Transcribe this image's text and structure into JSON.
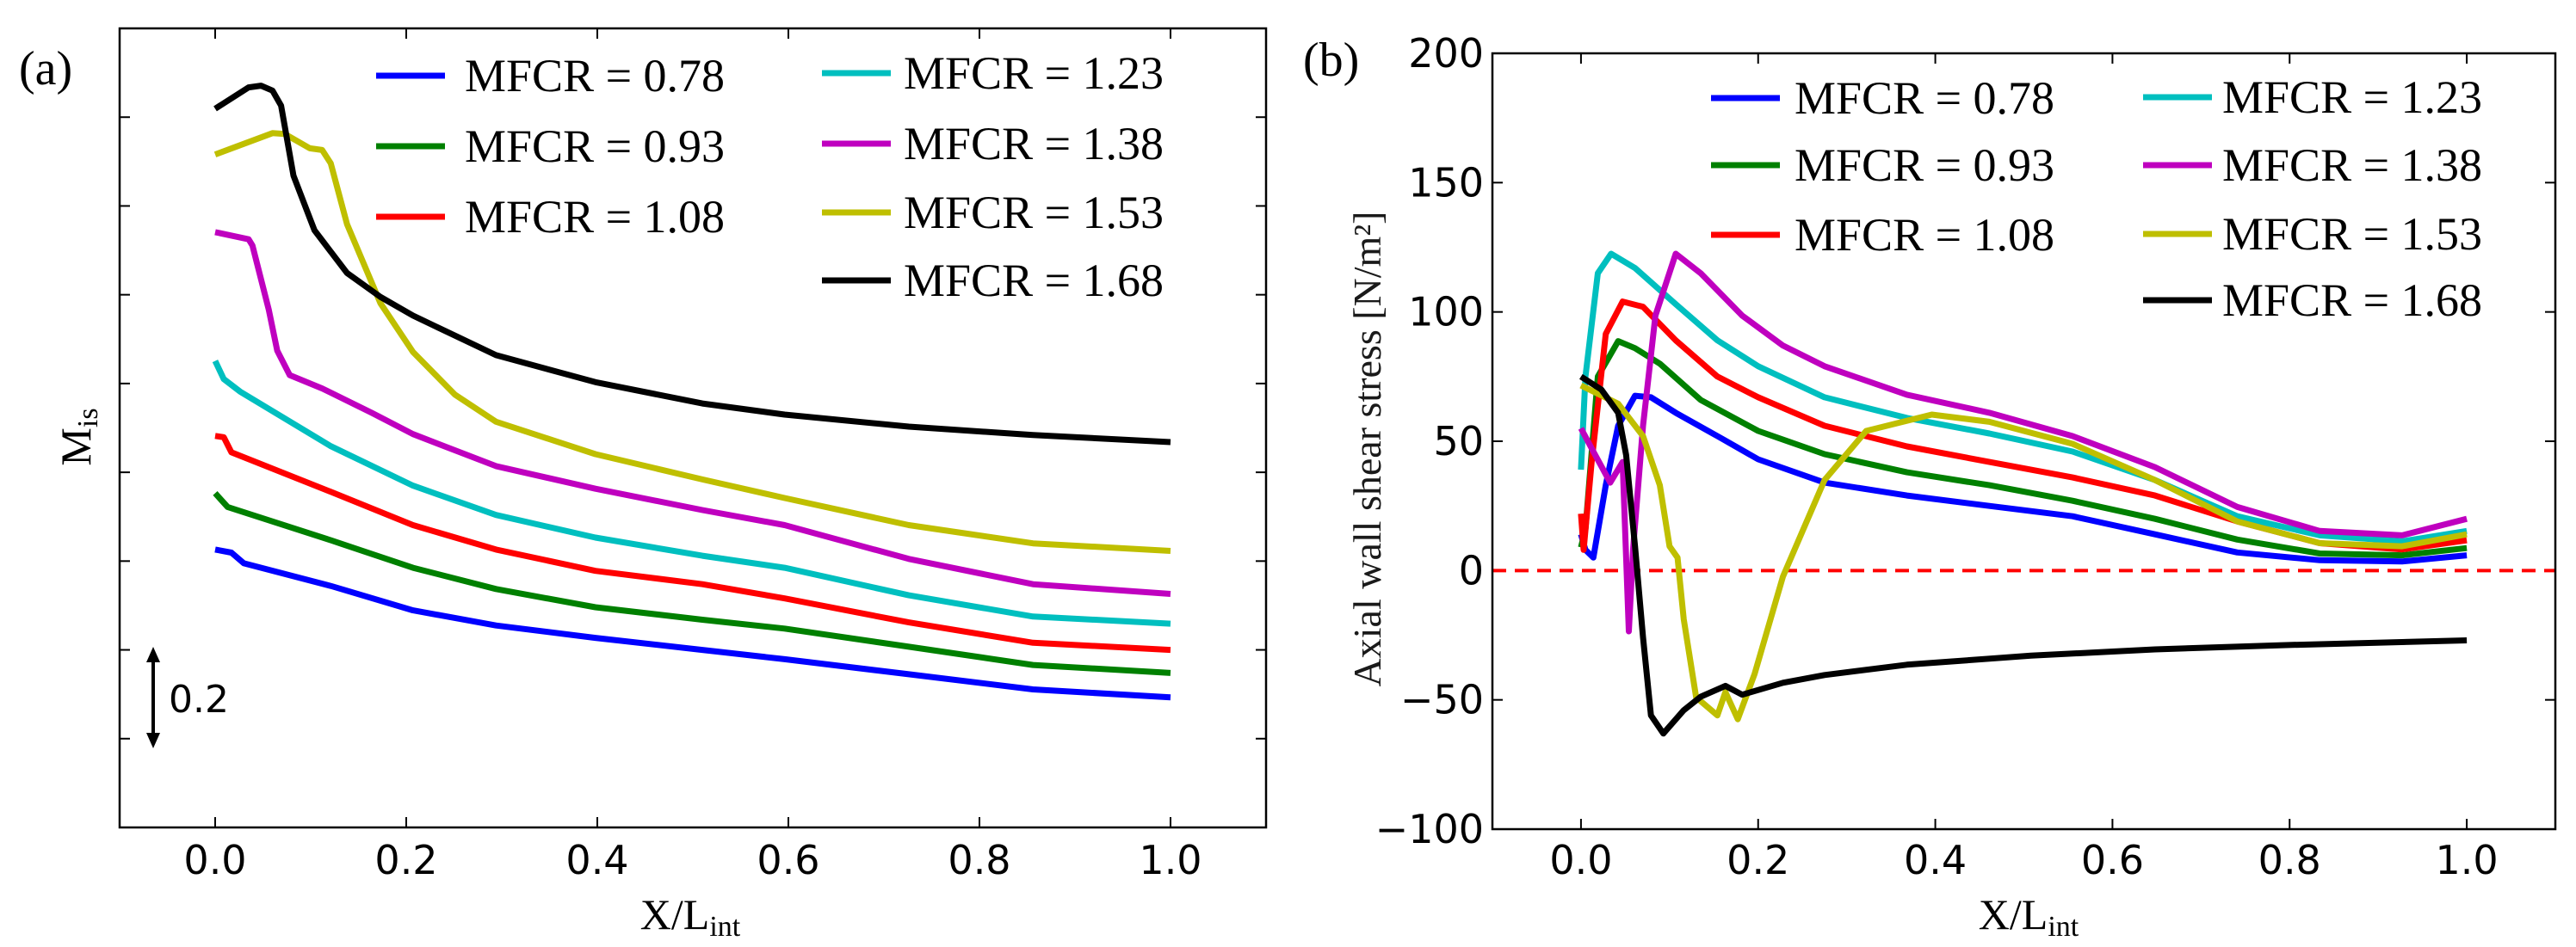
{
  "chart_data": [
    {
      "type": "line",
      "panel_label": "(a)",
      "title": "",
      "xlabel": "X/L",
      "xlabel_sub": "int",
      "ylabel": "M",
      "ylabel_sub": "is",
      "xlim": [
        -0.1,
        1.1
      ],
      "ylim": [
        0,
        1.8
      ],
      "y_units_note": "relative (no absolute y tick labels; scale bar = 0.2)",
      "xticks": [
        "0.0",
        "0.2",
        "0.4",
        "0.6",
        "0.8",
        "1.0"
      ],
      "ytick_values": [
        0.2,
        0.4,
        0.6,
        0.8,
        1.0,
        1.2,
        1.4,
        1.6
      ],
      "scale_bar_label": "0.2",
      "scale_bar_value": 0.2,
      "grid": false,
      "legend_placement": "top-right",
      "series": [
        {
          "name": "MFCR = 0.78",
          "color": "#0000ff",
          "x": [
            0,
            0.017,
            0.03,
            0.121,
            0.207,
            0.294,
            0.398,
            0.51,
            0.596,
            0.726,
            0.856,
            1
          ],
          "y": [
            0.626,
            0.619,
            0.595,
            0.544,
            0.489,
            0.455,
            0.427,
            0.4,
            0.379,
            0.345,
            0.311,
            0.293
          ]
        },
        {
          "name": "MFCR = 0.93",
          "color": "#008000",
          "x": [
            0,
            0.013,
            0.121,
            0.207,
            0.294,
            0.398,
            0.51,
            0.596,
            0.726,
            0.856,
            1
          ],
          "y": [
            0.753,
            0.722,
            0.647,
            0.585,
            0.537,
            0.496,
            0.468,
            0.448,
            0.407,
            0.366,
            0.348
          ]
        },
        {
          "name": "MFCR = 1.08",
          "color": "#ff0000",
          "x": [
            0,
            0.009,
            0.017,
            0.121,
            0.207,
            0.294,
            0.398,
            0.51,
            0.596,
            0.726,
            0.856,
            1
          ],
          "y": [
            0.882,
            0.879,
            0.845,
            0.756,
            0.681,
            0.626,
            0.578,
            0.548,
            0.516,
            0.462,
            0.416,
            0.4
          ]
        },
        {
          "name": "MFCR = 1.23",
          "color": "#00bfbf",
          "x": [
            0,
            0.009,
            0.026,
            0.121,
            0.207,
            0.294,
            0.398,
            0.51,
            0.596,
            0.726,
            0.856,
            1
          ],
          "y": [
            1.051,
            1.01,
            0.982,
            0.859,
            0.77,
            0.704,
            0.653,
            0.612,
            0.585,
            0.523,
            0.475,
            0.459
          ]
        },
        {
          "name": "MFCR = 1.38",
          "color": "#bf00bf",
          "x": [
            0,
            0.035,
            0.039,
            0.056,
            0.065,
            0.078,
            0.112,
            0.164,
            0.207,
            0.294,
            0.398,
            0.51,
            0.596,
            0.726,
            0.856,
            1
          ],
          "y": [
            1.341,
            1.325,
            1.311,
            1.167,
            1.074,
            1.019,
            0.989,
            0.934,
            0.886,
            0.814,
            0.763,
            0.715,
            0.681,
            0.605,
            0.548,
            0.526
          ]
        },
        {
          "name": "MFCR = 1.53",
          "color": "#bfbf00",
          "x": [
            0,
            0.06,
            0.073,
            0.099,
            0.112,
            0.121,
            0.138,
            0.173,
            0.207,
            0.251,
            0.294,
            0.398,
            0.51,
            0.596,
            0.726,
            0.856,
            1
          ],
          "y": [
            1.516,
            1.564,
            1.562,
            1.53,
            1.526,
            1.496,
            1.359,
            1.181,
            1.071,
            0.975,
            0.914,
            0.841,
            0.784,
            0.742,
            0.681,
            0.64,
            0.623
          ]
        },
        {
          "name": "MFCR = 1.68",
          "color": "#000000",
          "x": [
            0,
            0.035,
            0.048,
            0.06,
            0.069,
            0.082,
            0.104,
            0.138,
            0.173,
            0.207,
            0.294,
            0.398,
            0.51,
            0.596,
            0.726,
            0.856,
            1
          ],
          "y": [
            1.619,
            1.667,
            1.671,
            1.66,
            1.626,
            1.468,
            1.345,
            1.249,
            1.195,
            1.153,
            1.064,
            1.003,
            0.955,
            0.93,
            0.903,
            0.884,
            0.868
          ]
        }
      ]
    },
    {
      "type": "line",
      "panel_label": "(b)",
      "title": "",
      "xlabel": "X/L",
      "xlabel_sub": "int",
      "ylabel": "Axial wall shear stress [N/m²]",
      "xlim": [
        -0.1,
        1.1
      ],
      "ylim": [
        -100,
        200
      ],
      "xticks": [
        "0.0",
        "0.2",
        "0.4",
        "0.6",
        "0.8",
        "1.0"
      ],
      "yticks": [
        "−100",
        "−50",
        "0",
        "50",
        "100",
        "150",
        "200"
      ],
      "ytick_values": [
        -100,
        -50,
        0,
        50,
        100,
        150,
        200
      ],
      "reference_line": {
        "y": 0,
        "color": "#ff0000",
        "style": "dashed"
      },
      "grid": false,
      "legend_placement": "top-right",
      "series": [
        {
          "name": "MFCR = 0.78",
          "color": "#0000ff",
          "x": [
            0,
            0.005,
            0.014,
            0.028,
            0.042,
            0.061,
            0.079,
            0.107,
            0.154,
            0.2,
            0.275,
            0.368,
            0.461,
            0.555,
            0.648,
            0.741,
            0.834,
            0.927,
            1
          ],
          "y": [
            14,
            8,
            5,
            33,
            56,
            67.6,
            67,
            61,
            52,
            43,
            34,
            29,
            25,
            21,
            14,
            7,
            4,
            3.5,
            5.9
          ]
        },
        {
          "name": "MFCR = 0.93",
          "color": "#008000",
          "x": [
            0,
            0.005,
            0.019,
            0.042,
            0.061,
            0.089,
            0.135,
            0.2,
            0.275,
            0.368,
            0.461,
            0.555,
            0.648,
            0.741,
            0.834,
            0.927,
            1
          ],
          "y": [
            9,
            16,
            75,
            88.7,
            86,
            80,
            66,
            54,
            45,
            38,
            33,
            27,
            20,
            12,
            6.6,
            5.9,
            8.7
          ]
        },
        {
          "name": "MFCR = 1.08",
          "color": "#ff0000",
          "x": [
            0,
            0.003,
            0.012,
            0.028,
            0.047,
            0.07,
            0.107,
            0.154,
            0.2,
            0.275,
            0.368,
            0.461,
            0.555,
            0.648,
            0.741,
            0.834,
            0.927,
            1
          ],
          "y": [
            22,
            8,
            42,
            91.5,
            104,
            102,
            89,
            75,
            67,
            56,
            48,
            42,
            36,
            29,
            19,
            10.6,
            8.2,
            11.7
          ]
        },
        {
          "name": "MFCR = 1.23",
          "color": "#00bfbf",
          "x": [
            0,
            0.005,
            0.019,
            0.034,
            0.061,
            0.107,
            0.154,
            0.2,
            0.275,
            0.368,
            0.461,
            0.555,
            0.648,
            0.741,
            0.834,
            0.927,
            1
          ],
          "y": [
            39,
            75,
            115,
            122.5,
            117,
            103,
            89,
            79,
            67,
            59,
            53,
            46,
            35,
            21,
            13.6,
            11.3,
            15.3
          ]
        },
        {
          "name": "MFCR = 1.38",
          "color": "#bf00bf",
          "x": [
            0,
            0.014,
            0.033,
            0.047,
            0.054,
            0.059,
            0.07,
            0.084,
            0.107,
            0.135,
            0.182,
            0.228,
            0.275,
            0.368,
            0.461,
            0.555,
            0.648,
            0.741,
            0.834,
            0.927,
            1
          ],
          "y": [
            55,
            46,
            34,
            42,
            -23.5,
            9,
            56,
            98.6,
            122.5,
            115,
            98.6,
            87,
            79,
            68,
            61,
            52,
            40,
            24.6,
            15.3,
            13.6,
            20
          ]
        },
        {
          "name": "MFCR = 1.53",
          "color": "#bfbf00",
          "x": [
            0,
            0.042,
            0.07,
            0.089,
            0.1,
            0.109,
            0.116,
            0.13,
            0.154,
            0.163,
            0.177,
            0.196,
            0.228,
            0.275,
            0.322,
            0.396,
            0.461,
            0.555,
            0.648,
            0.741,
            0.834,
            0.927,
            1
          ],
          "y": [
            71.6,
            64.5,
            52,
            33,
            9.4,
            5,
            -18.8,
            -49,
            -56,
            -47,
            -57.5,
            -40,
            -2.3,
            35,
            54,
            60.3,
            57.5,
            49,
            35,
            19,
            10.6,
            9.4,
            14
          ]
        },
        {
          "name": "MFCR = 1.68",
          "color": "#000000",
          "x": [
            0,
            0.023,
            0.042,
            0.051,
            0.061,
            0.07,
            0.079,
            0.093,
            0.116,
            0.135,
            0.163,
            0.182,
            0.228,
            0.275,
            0.368,
            0.508,
            0.648,
            0.788,
            1
          ],
          "y": [
            75,
            70,
            61,
            44.6,
            9.4,
            -25.8,
            -56,
            -63,
            -54,
            -48.8,
            -44.6,
            -48,
            -43.4,
            -40.4,
            -36.4,
            -32.9,
            -30.5,
            -28.9,
            -27
          ]
        }
      ]
    }
  ]
}
